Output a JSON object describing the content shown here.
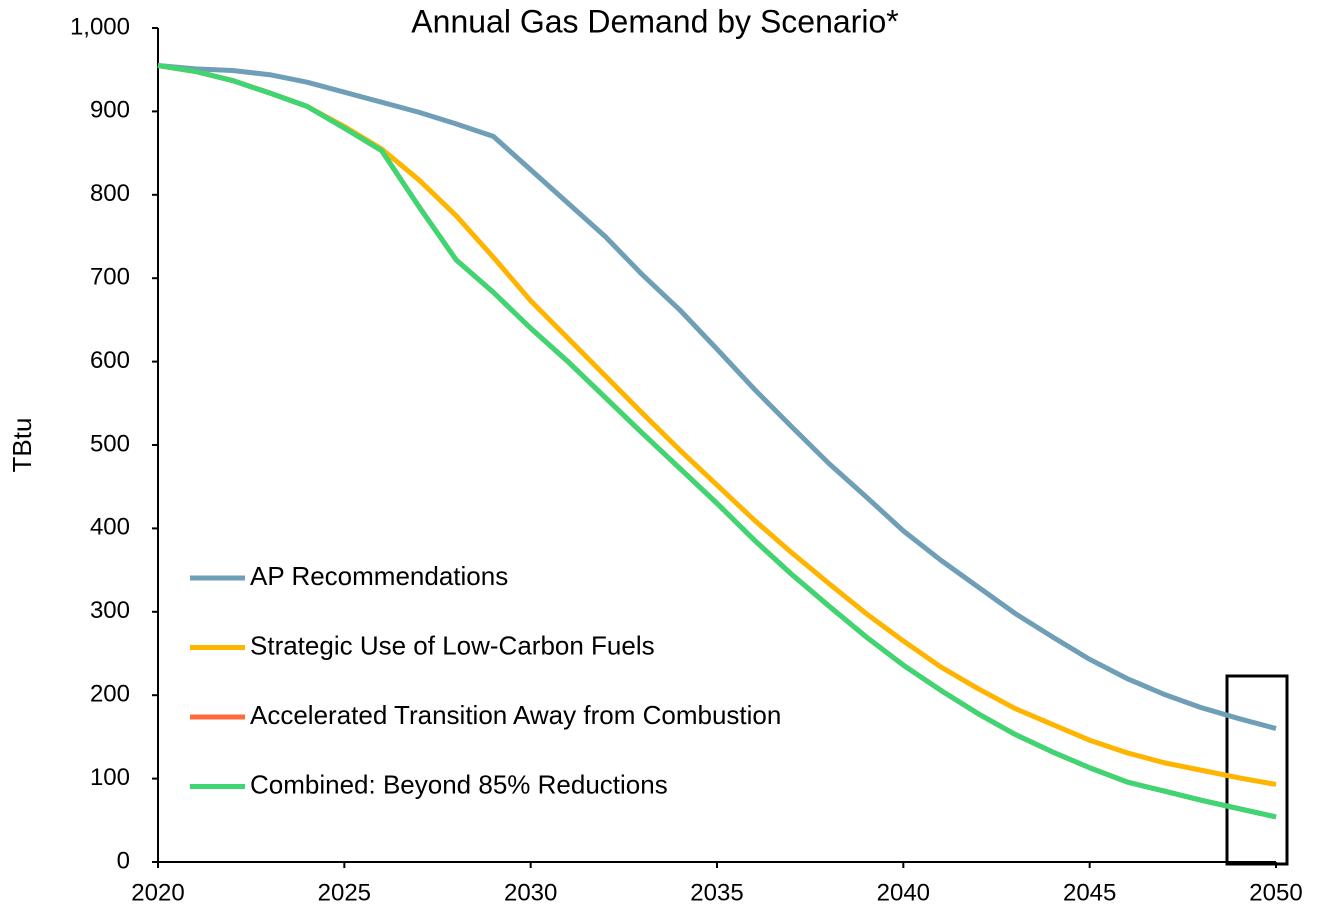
{
  "chart_data": {
    "type": "line",
    "title": "Annual Gas Demand by Scenario*",
    "y_label": "TBtu",
    "x": [
      2020,
      2021,
      2022,
      2023,
      2024,
      2025,
      2026,
      2027,
      2028,
      2029,
      2030,
      2031,
      2032,
      2033,
      2034,
      2035,
      2036,
      2037,
      2038,
      2039,
      2040,
      2041,
      2042,
      2043,
      2044,
      2045,
      2046,
      2047,
      2048,
      2049,
      2050
    ],
    "series": [
      {
        "name": "AP Recommendations",
        "color": "#6f9fb6",
        "values": [
          955,
          951,
          949,
          944,
          935,
          923,
          911,
          899,
          885,
          870,
          830,
          790,
          750,
          704,
          662,
          615,
          567,
          522,
          478,
          438,
          397,
          362,
          330,
          298,
          270,
          243,
          220,
          201,
          185,
          172,
          160
        ]
      },
      {
        "name": "Strategic Use of Low-Carbon Fuels",
        "color": "#ffb400",
        "values": [
          955,
          948,
          937,
          922,
          906,
          882,
          855,
          818,
          775,
          725,
          673,
          628,
          583,
          538,
          494,
          452,
          410,
          371,
          334,
          298,
          265,
          234,
          208,
          184,
          165,
          146,
          131,
          119,
          110,
          101,
          93
        ]
      },
      {
        "name": "Accelerated Transition Away from Combustion",
        "color": "#ff6a3d",
        "values": [
          955,
          948,
          937,
          922,
          906,
          880,
          853,
          786,
          722,
          683,
          640,
          600,
          557,
          514,
          472,
          430,
          386,
          345,
          307,
          270,
          236,
          206,
          178,
          153,
          132,
          113,
          96,
          85,
          74,
          64,
          54
        ]
      },
      {
        "name": "Combined: Beyond 85% Reductions",
        "color": "#3ed672",
        "values": [
          955,
          948,
          937,
          922,
          906,
          880,
          853,
          786,
          722,
          683,
          640,
          600,
          557,
          514,
          472,
          430,
          386,
          345,
          307,
          270,
          236,
          206,
          178,
          153,
          132,
          113,
          96,
          85,
          74,
          64,
          54
        ]
      }
    ],
    "xlim": [
      2020,
      2050
    ],
    "xticks": [
      2020,
      2025,
      2030,
      2035,
      2040,
      2045,
      2050
    ],
    "ylim": [
      0,
      1000
    ],
    "yticks": [
      0,
      100,
      200,
      300,
      400,
      500,
      600,
      700,
      800,
      900,
      {
        "value": 1000,
        "label": "1,000"
      }
    ]
  }
}
